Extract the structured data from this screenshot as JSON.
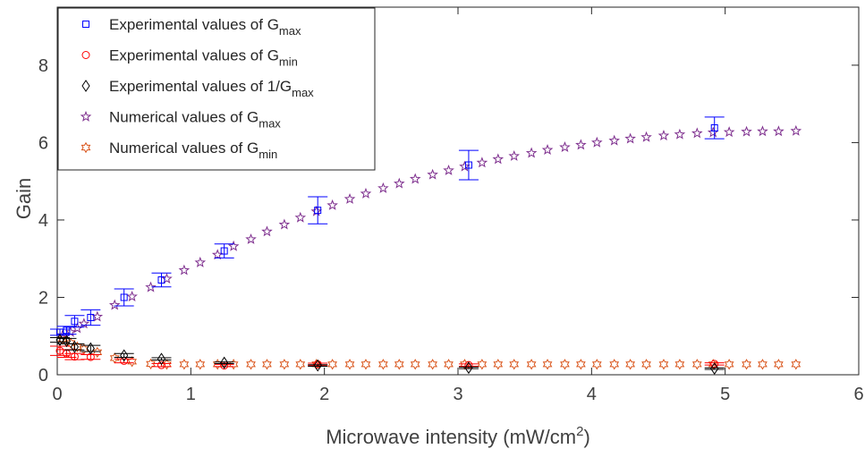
{
  "chart_data": {
    "type": "scatter",
    "xlabel": {
      "base": "Microwave intensity (mW/cm",
      "sup": "2",
      "end": ")"
    },
    "ylabel": "Gain",
    "xlim": [
      0,
      6
    ],
    "ylim": [
      0,
      9.5
    ],
    "xticks": [
      "0",
      "1",
      "2",
      "3",
      "4",
      "5",
      "6"
    ],
    "yticks": [
      "0",
      "2",
      "4",
      "6",
      "8"
    ],
    "xtick_values": [
      0,
      1,
      2,
      3,
      4,
      5,
      6
    ],
    "ytick_values": [
      0,
      2,
      4,
      6,
      8
    ],
    "legend_position": "top-left",
    "series": [
      {
        "legend": {
          "text": "Experimental values of G",
          "sub": "max"
        },
        "marker": "square",
        "color": "#0000ff",
        "x": [
          0.02,
          0.07,
          0.13,
          0.25,
          0.5,
          0.78,
          1.25,
          1.95,
          3.08,
          4.92
        ],
        "y": [
          1.1,
          1.15,
          1.38,
          1.48,
          2.0,
          2.45,
          3.2,
          4.25,
          5.42,
          6.38
        ],
        "err": [
          0.08,
          0.1,
          0.15,
          0.2,
          0.22,
          0.18,
          0.18,
          0.35,
          0.38,
          0.28
        ]
      },
      {
        "legend": {
          "text": "Experimental values of G",
          "sub": "min"
        },
        "marker": "circle",
        "color": "#ff0000",
        "x": [
          0.02,
          0.07,
          0.13,
          0.25,
          0.5,
          0.78,
          1.25,
          1.95,
          3.08,
          4.92
        ],
        "y": [
          0.62,
          0.55,
          0.47,
          0.46,
          0.36,
          0.25,
          0.24,
          0.27,
          0.25,
          0.28
        ],
        "err": [
          0.12,
          0.1,
          0.08,
          0.06,
          0.05,
          0.04,
          0.03,
          0.03,
          0.03,
          0.03
        ]
      },
      {
        "legend": {
          "text": "Experimental values of 1/G",
          "sub": "max"
        },
        "marker": "diamond",
        "color": "#000000",
        "x": [
          0.02,
          0.07,
          0.13,
          0.25,
          0.5,
          0.78,
          1.25,
          1.95,
          3.08,
          4.92
        ],
        "y": [
          0.9,
          0.87,
          0.72,
          0.68,
          0.5,
          0.41,
          0.31,
          0.24,
          0.18,
          0.16
        ],
        "err": [
          0.06,
          0.07,
          0.08,
          0.08,
          0.05,
          0.03,
          0.02,
          0.02,
          0.02,
          0.02
        ]
      },
      {
        "legend": {
          "text": "Numerical values of G",
          "sub": "max"
        },
        "marker": "star",
        "color": "#7e2f8e",
        "x": [
          0.04,
          0.1,
          0.15,
          0.2,
          0.3,
          0.43,
          0.56,
          0.7,
          0.82,
          0.95,
          1.07,
          1.2,
          1.32,
          1.45,
          1.57,
          1.7,
          1.82,
          1.94,
          2.06,
          2.19,
          2.31,
          2.44,
          2.56,
          2.68,
          2.81,
          2.93,
          3.05,
          3.18,
          3.3,
          3.42,
          3.55,
          3.67,
          3.8,
          3.92,
          4.04,
          4.17,
          4.29,
          4.41,
          4.54,
          4.66,
          4.79,
          4.91,
          5.03,
          5.16,
          5.28,
          5.4,
          5.53
        ],
        "y": [
          1.02,
          1.1,
          1.2,
          1.32,
          1.5,
          1.8,
          2.02,
          2.26,
          2.48,
          2.7,
          2.9,
          3.1,
          3.32,
          3.5,
          3.7,
          3.88,
          4.06,
          4.22,
          4.38,
          4.54,
          4.68,
          4.82,
          4.94,
          5.06,
          5.17,
          5.28,
          5.38,
          5.48,
          5.57,
          5.65,
          5.73,
          5.81,
          5.88,
          5.94,
          6.0,
          6.05,
          6.1,
          6.14,
          6.18,
          6.21,
          6.24,
          6.26,
          6.27,
          6.28,
          6.29,
          6.29,
          6.3
        ]
      },
      {
        "legend": {
          "text": "Numerical values of G",
          "sub": "min"
        },
        "marker": "hexagram",
        "color": "#d95319",
        "x": [
          0.04,
          0.1,
          0.15,
          0.2,
          0.3,
          0.43,
          0.56,
          0.7,
          0.82,
          0.95,
          1.07,
          1.2,
          1.32,
          1.45,
          1.57,
          1.7,
          1.82,
          1.94,
          2.06,
          2.19,
          2.31,
          2.44,
          2.56,
          2.68,
          2.81,
          2.93,
          3.05,
          3.18,
          3.3,
          3.42,
          3.55,
          3.67,
          3.8,
          3.92,
          4.04,
          4.17,
          4.29,
          4.41,
          4.54,
          4.66,
          4.79,
          4.91,
          5.03,
          5.16,
          5.28,
          5.4,
          5.53
        ],
        "y": [
          0.92,
          0.82,
          0.72,
          0.66,
          0.58,
          0.43,
          0.34,
          0.28,
          0.27,
          0.27,
          0.27,
          0.27,
          0.27,
          0.27,
          0.27,
          0.27,
          0.27,
          0.27,
          0.27,
          0.27,
          0.27,
          0.27,
          0.27,
          0.27,
          0.27,
          0.27,
          0.27,
          0.27,
          0.27,
          0.27,
          0.27,
          0.27,
          0.27,
          0.27,
          0.27,
          0.27,
          0.27,
          0.27,
          0.27,
          0.27,
          0.27,
          0.27,
          0.27,
          0.27,
          0.27,
          0.27,
          0.27
        ]
      }
    ]
  }
}
